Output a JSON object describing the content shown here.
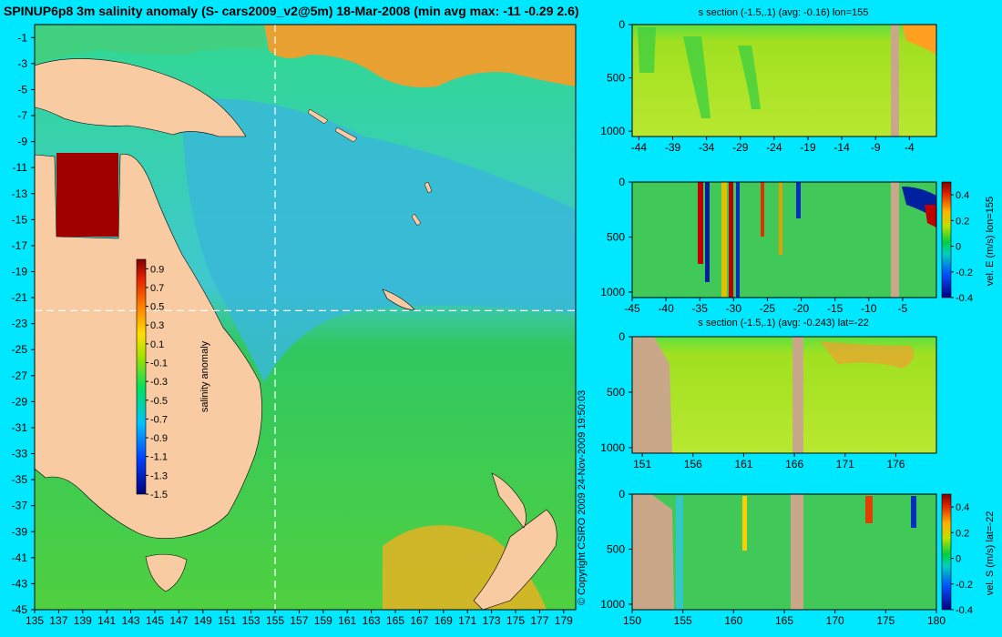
{
  "main_title": "SPINUP6p8 3m salinity anomaly (S- cars2009_v2@5m) 18-Mar-2008 (min avg max: -11 -0.29 2.6)",
  "copyright": "© Copyright CSIRO 2009   24-Nov-2009 19:50:03",
  "colors": {
    "background": "#00e8ff",
    "land": "#f8cba3",
    "section_land": "#c8a888",
    "crosshair": "#ffffff"
  },
  "chart_data": [
    {
      "type": "heatmap",
      "name": "map",
      "title": "SPINUP6p8 3m salinity anomaly (S- cars2009_v2@5m) 18-Mar-2008 (min avg max: -11 -0.29 2.6)",
      "x_ticks": [
        "135",
        "137",
        "139",
        "141",
        "143",
        "145",
        "147",
        "149",
        "151",
        "153",
        "155",
        "157",
        "159",
        "161",
        "163",
        "165",
        "167",
        "169",
        "171",
        "173",
        "175",
        "177",
        "179"
      ],
      "y_ticks": [
        "-1",
        "-3",
        "-5",
        "-7",
        "-9",
        "-11",
        "-13",
        "-15",
        "-17",
        "-19",
        "-21",
        "-23",
        "-25",
        "-27",
        "-29",
        "-31",
        "-33",
        "-35",
        "-37",
        "-39",
        "-41",
        "-43",
        "-45"
      ],
      "xlim": [
        135,
        180
      ],
      "ylim": [
        -45,
        0
      ],
      "crosshair": {
        "lon": 155,
        "lat": -22
      },
      "colorbar": {
        "label": "salinity anomaly",
        "ticks": [
          "0.9",
          "0.7",
          "0.5",
          "0.3",
          "0.1",
          "-0.1",
          "-0.3",
          "-0.5",
          "-0.7",
          "-0.9",
          "-1.1",
          "-1.3",
          "-1.5"
        ],
        "range": [
          -1.5,
          1.0
        ]
      }
    },
    {
      "type": "heatmap",
      "name": "s-section-lon155",
      "title": "s section (-1.5,.1) (avg: -0.16) lon=155",
      "x_ticks": [
        "-44",
        "-39",
        "-34",
        "-29",
        "-24",
        "-19",
        "-14",
        "-9",
        "-4"
      ],
      "y_ticks": [
        "0",
        "500",
        "1000"
      ],
      "xlim": [
        -45,
        0
      ],
      "ylim": [
        1050,
        0
      ]
    },
    {
      "type": "heatmap",
      "name": "velE-section-lon155",
      "title": "",
      "x_ticks": [
        "-45",
        "-40",
        "-35",
        "-30",
        "-25",
        "-20",
        "-15",
        "-10",
        "-5"
      ],
      "y_ticks": [
        "0",
        "500",
        "1000"
      ],
      "xlim": [
        -45,
        0
      ],
      "ylim": [
        1050,
        0
      ],
      "colorbar": {
        "label": "vel. E (m/s) lon=155",
        "ticks": [
          "0.4",
          "0.2",
          "0",
          "-0.2",
          "-0.4"
        ],
        "range": [
          -0.4,
          0.5
        ]
      }
    },
    {
      "type": "heatmap",
      "name": "s-section-lat-22",
      "title": "s section (-1.5,.1) (avg: -0.243) lat=-22",
      "x_ticks": [
        "151",
        "156",
        "161",
        "166",
        "171",
        "176"
      ],
      "y_ticks": [
        "0",
        "500",
        "1000"
      ],
      "xlim": [
        150,
        180
      ],
      "ylim": [
        1050,
        0
      ]
    },
    {
      "type": "heatmap",
      "name": "velS-section-lat-22",
      "title": "",
      "x_ticks": [
        "150",
        "155",
        "160",
        "165",
        "170",
        "175",
        "180"
      ],
      "y_ticks": [
        "0",
        "500",
        "1000"
      ],
      "xlim": [
        150,
        180
      ],
      "ylim": [
        1050,
        0
      ],
      "colorbar": {
        "label": "vel. S (m/s) lat=-22",
        "ticks": [
          "0.4",
          "0.2",
          "0",
          "-0.2",
          "-0.4"
        ],
        "range": [
          -0.4,
          0.5
        ]
      }
    }
  ]
}
